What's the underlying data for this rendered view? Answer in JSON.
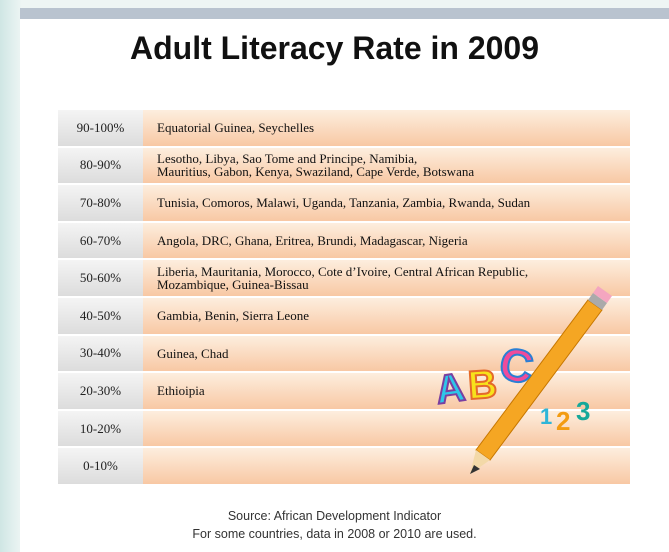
{
  "title": "Adult Literacy Rate in 2009",
  "table": {
    "rows": [
      {
        "range": "90-100%",
        "countries": [
          "Equatorial Guinea, Seychelles"
        ]
      },
      {
        "range": "80-90%",
        "countries": [
          "Lesotho, Libya, Sao Tome and Principe, Namibia,",
          "Mauritius, Gabon, Kenya, Swaziland, Cape Verde, Botswana"
        ]
      },
      {
        "range": "70-80%",
        "countries": [
          "Tunisia, Comoros, Malawi, Uganda, Tanzania, Zambia, Rwanda, Sudan"
        ]
      },
      {
        "range": "60-70%",
        "countries": [
          "Angola, DRC, Ghana, Eritrea, Brundi, Madagascar, Nigeria"
        ]
      },
      {
        "range": "50-60%",
        "countries": [
          "Liberia, Mauritania, Morocco, Cote d’Ivoire, Central African Republic,",
          "Mozambique, Guinea-Bissau"
        ]
      },
      {
        "range": "40-50%",
        "countries": [
          "Gambia, Benin, Sierra Leone"
        ]
      },
      {
        "range": "30-40%",
        "countries": [
          "Guinea, Chad"
        ]
      },
      {
        "range": "20-30%",
        "countries": [
          "Ethioipia"
        ]
      },
      {
        "range": "10-20%",
        "countries": []
      },
      {
        "range": "0-10%",
        "countries": []
      }
    ]
  },
  "decoration": {
    "letters": [
      "A",
      "B",
      "C"
    ],
    "digits": [
      "1",
      "2",
      "3"
    ]
  },
  "source": [
    "Source: African Development Indicator",
    "For some countries, data in 2008 or 2010 are used."
  ]
}
